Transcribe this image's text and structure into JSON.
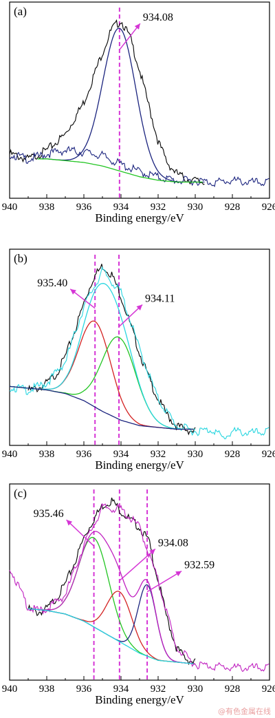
{
  "watermark": "@有色金属在线",
  "chart_data": [
    {
      "type": "line",
      "panel_label": "(a)",
      "xlabel": "Binding energy/eV",
      "ylabel": "",
      "xlim": [
        940,
        926
      ],
      "x_reversed": true,
      "y_ticks_shown": false,
      "xticks": [
        940,
        938,
        936,
        934,
        932,
        930,
        928,
        926
      ],
      "peaks": [
        {
          "label": "934.08",
          "position": 934.08
        }
      ],
      "dashed_lines": [
        934.08
      ],
      "series": [
        {
          "role": "raw",
          "color": "#000000",
          "kind": "data",
          "x": [
            940,
            939,
            938,
            937,
            936,
            935.5,
            935,
            934.5,
            934,
            933.5,
            933,
            932.5,
            932,
            931.5,
            931,
            930.5,
            930,
            929.5
          ],
          "y": [
            0.23,
            0.2,
            0.25,
            0.34,
            0.52,
            0.66,
            0.8,
            0.93,
            0.98,
            0.88,
            0.7,
            0.5,
            0.3,
            0.18,
            0.12,
            0.09,
            0.08,
            0.07
          ]
        },
        {
          "role": "raw",
          "color": "#1a237e",
          "kind": "data",
          "x": [
            940,
            939,
            938,
            937,
            936,
            935,
            934,
            933,
            932,
            931,
            930,
            929,
            928,
            927,
            926
          ],
          "y": [
            0.23,
            0.2,
            0.23,
            0.25,
            0.24,
            0.22,
            0.17,
            0.13,
            0.1,
            0.08,
            0.08,
            0.07,
            0.08,
            0.07,
            0.07
          ]
        },
        {
          "role": "envelope",
          "color": "#1a237e",
          "kind": "fit",
          "center": 934.08,
          "height": 0.8,
          "width": 1.25
        },
        {
          "role": "background",
          "color": "#22c522",
          "kind": "shirley",
          "x": [
            938.5,
            938,
            937,
            936,
            935,
            934,
            933,
            932,
            931,
            930,
            929.5
          ],
          "y": [
            0.19,
            0.19,
            0.18,
            0.17,
            0.15,
            0.12,
            0.09,
            0.07,
            0.06,
            0.06,
            0.06
          ]
        }
      ]
    },
    {
      "type": "line",
      "panel_label": "(b)",
      "xlabel": "Binding energy/eV",
      "ylabel": "",
      "xlim": [
        940,
        926
      ],
      "x_reversed": true,
      "y_ticks_shown": false,
      "xticks": [
        940,
        938,
        936,
        934,
        932,
        930,
        928,
        926
      ],
      "peaks": [
        {
          "label": "935.40",
          "position": 935.4
        },
        {
          "label": "934.11",
          "position": 934.11
        }
      ],
      "dashed_lines": [
        935.4,
        934.11
      ],
      "series": [
        {
          "role": "raw",
          "color": "#000000",
          "kind": "data",
          "x": [
            939,
            938.5,
            938,
            937.5,
            937,
            936.5,
            936,
            935.5,
            935,
            934.5,
            934,
            933.5,
            933,
            932.5,
            932,
            931.5,
            931,
            930.5,
            930
          ],
          "y": [
            0.29,
            0.3,
            0.33,
            0.38,
            0.48,
            0.62,
            0.78,
            0.92,
            0.99,
            0.94,
            0.82,
            0.66,
            0.5,
            0.36,
            0.24,
            0.15,
            0.09,
            0.07,
            0.06
          ]
        },
        {
          "role": "raw",
          "color": "#28d6e0",
          "kind": "data",
          "x": [
            940,
            939,
            938,
            937,
            936,
            935,
            934,
            933,
            932,
            931,
            930,
            929,
            928.5,
            928,
            927,
            926
          ],
          "y": [
            0.31,
            0.29,
            0.33,
            0.45,
            0.76,
            0.96,
            0.84,
            0.52,
            0.24,
            0.09,
            0.06,
            0.07,
            0.02,
            0.06,
            0.05,
            0.06
          ]
        },
        {
          "role": "component",
          "color": "#d32020",
          "kind": "fit",
          "center": 935.4,
          "height": 0.48,
          "width": 1.2
        },
        {
          "role": "component",
          "color": "#22c522",
          "kind": "fit",
          "center": 934.11,
          "height": 0.46,
          "width": 1.3
        },
        {
          "role": "envelope",
          "color": "#28d6e0",
          "kind": "fit_sum"
        },
        {
          "role": "background",
          "color": "#1a237e",
          "kind": "shirley",
          "x": [
            940,
            939,
            938,
            937,
            936,
            935,
            934,
            933,
            932,
            931,
            930
          ],
          "y": [
            0.3,
            0.29,
            0.28,
            0.26,
            0.22,
            0.16,
            0.11,
            0.08,
            0.07,
            0.06,
            0.06
          ]
        }
      ]
    },
    {
      "type": "line",
      "panel_label": "(c)",
      "xlabel": "Binding energy/eV",
      "ylabel": "",
      "xlim": [
        940,
        926
      ],
      "x_reversed": true,
      "y_ticks_shown": false,
      "xticks": [
        940,
        938,
        936,
        934,
        932,
        930,
        928,
        926
      ],
      "peaks": [
        {
          "label": "935.46",
          "position": 935.46
        },
        {
          "label": "934.08",
          "position": 934.08
        },
        {
          "label": "932.59",
          "position": 932.59
        }
      ],
      "dashed_lines": [
        935.46,
        934.08,
        932.59
      ],
      "series": [
        {
          "role": "raw",
          "color": "#000000",
          "kind": "data",
          "x": [
            939,
            938.5,
            938,
            937.5,
            937,
            936.5,
            936,
            935.5,
            935,
            934.5,
            934,
            933.5,
            933,
            932.5,
            932,
            931.5,
            931,
            930.5,
            930
          ],
          "y": [
            0.38,
            0.36,
            0.38,
            0.44,
            0.52,
            0.64,
            0.78,
            0.88,
            0.96,
            0.99,
            0.93,
            0.88,
            0.84,
            0.76,
            0.54,
            0.32,
            0.16,
            0.1,
            0.08
          ]
        },
        {
          "role": "raw",
          "color": "#c020c0",
          "kind": "data",
          "x": [
            940,
            939.5,
            939,
            938.5,
            938,
            937,
            936,
            935,
            934,
            933,
            932,
            931,
            930,
            929,
            928,
            927,
            926
          ],
          "y": [
            0.62,
            0.5,
            0.39,
            0.37,
            0.38,
            0.46,
            0.74,
            0.95,
            0.94,
            0.84,
            0.54,
            0.16,
            0.07,
            0.06,
            0.05,
            0.05,
            0.05
          ]
        },
        {
          "role": "component",
          "color": "#22c522",
          "kind": "fit",
          "center": 935.46,
          "height": 0.5,
          "width": 1.15
        },
        {
          "role": "component",
          "color": "#d32020",
          "kind": "fit",
          "center": 934.08,
          "height": 0.28,
          "width": 0.95
        },
        {
          "role": "component",
          "color": "#1a237e",
          "kind": "fit",
          "center": 932.59,
          "height": 0.4,
          "width": 0.7
        },
        {
          "role": "envelope",
          "color": "#c020c0",
          "kind": "fit_sum"
        },
        {
          "role": "background",
          "color": "#28d6e0",
          "kind": "shirley",
          "x": [
            939,
            938,
            937,
            936,
            935,
            934,
            933,
            932,
            931,
            930
          ],
          "y": [
            0.37,
            0.36,
            0.34,
            0.3,
            0.24,
            0.18,
            0.12,
            0.08,
            0.07,
            0.06
          ]
        }
      ]
    }
  ]
}
